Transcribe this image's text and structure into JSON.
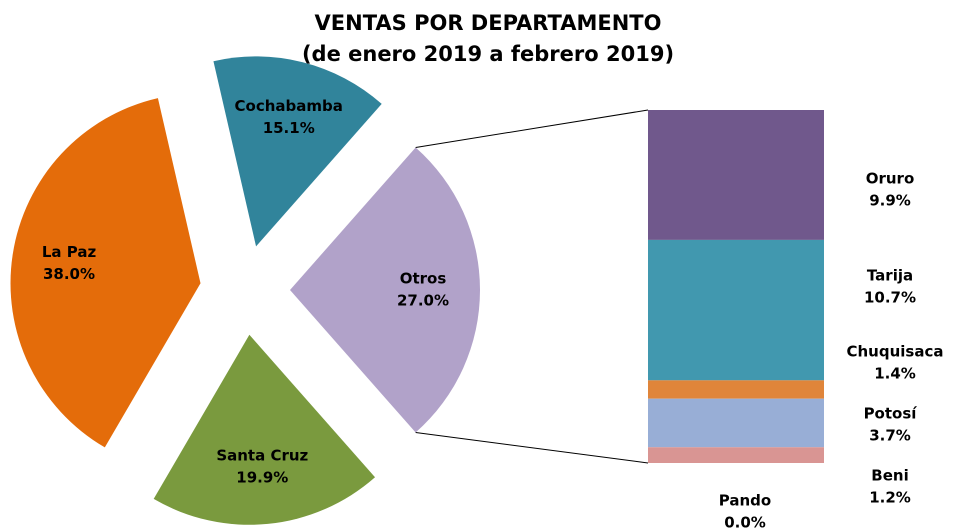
{
  "chart_data": {
    "type": "pie",
    "title": "VENTAS POR DEPARTAMENTO",
    "subtitle": "(de enero 2019 a febrero 2019)",
    "categories": [
      "Otros",
      "Santa Cruz",
      "La Paz",
      "Cochabamba"
    ],
    "values": [
      27.0,
      19.9,
      38.0,
      15.1
    ],
    "value_labels": [
      "27.0%",
      "19.9%",
      "38.0%",
      "15.1%"
    ],
    "colors": [
      "#b1a2c9",
      "#7a9a3e",
      "#e46c0a",
      "#31849b"
    ],
    "breakout": {
      "categories": [
        "Oruro",
        "Tarija",
        "Chuquisaca",
        "Potosí",
        "Beni",
        "Pando"
      ],
      "values": [
        9.9,
        10.7,
        1.4,
        3.7,
        1.2,
        0.0
      ],
      "value_labels": [
        "9.9%",
        "10.7%",
        "1.4%",
        "3.7%",
        "1.2%",
        "0.0%"
      ],
      "colors": [
        "#70588c",
        "#4198af",
        "#e0853a",
        "#98aed6",
        "#d99593",
        "#a5c26b"
      ]
    }
  }
}
